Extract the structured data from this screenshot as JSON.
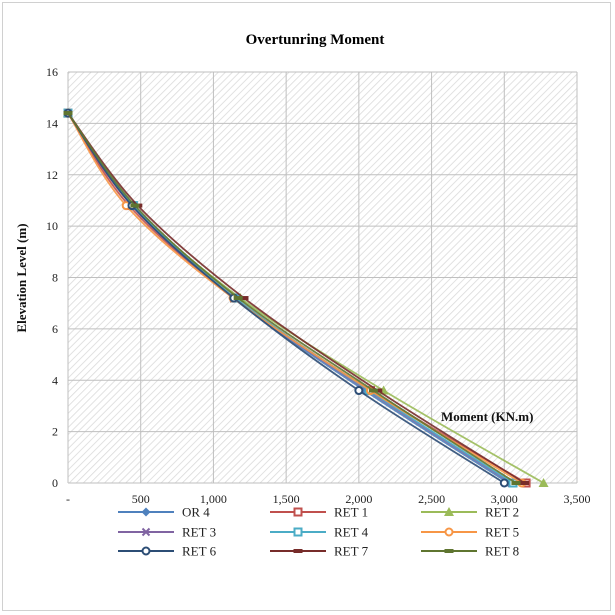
{
  "chart_data": {
    "type": "line",
    "title": "Overtunring Moment",
    "xlabel": "Moment (KN.m)",
    "ylabel": "Elevation Level (m)",
    "xlim": [
      0,
      3500
    ],
    "ylim": [
      0,
      16
    ],
    "x_ticks": [
      "-",
      "500",
      "1,000",
      "1,500",
      "2,000",
      "2,500",
      "3,000",
      "3,500"
    ],
    "y_ticks": [
      "0",
      "2",
      "4",
      "6",
      "8",
      "10",
      "12",
      "14",
      "16"
    ],
    "grid": true,
    "background": "hatched",
    "legend_position": "bottom",
    "y": [
      0,
      3.6,
      7.2,
      10.8,
      14.4
    ],
    "series": [
      {
        "name": "OR 4",
        "color": "#4F81BD",
        "marker": "diamond",
        "x": [
          3030,
          2040,
          1135,
          440,
          0
        ]
      },
      {
        "name": "RET 1",
        "color": "#C0504D",
        "marker": "square",
        "x": [
          3150,
          2080,
          1145,
          420,
          0
        ]
      },
      {
        "name": "RET 2",
        "color": "#9BBB59",
        "marker": "triangle",
        "x": [
          3270,
          2170,
          1185,
          450,
          0
        ]
      },
      {
        "name": "RET 3",
        "color": "#8064A2",
        "marker": "x",
        "x": [
          3050,
          2060,
          1140,
          440,
          0
        ]
      },
      {
        "name": "RET 4",
        "color": "#4BACC6",
        "marker": "square",
        "x": [
          3060,
          2070,
          1150,
          450,
          0
        ]
      },
      {
        "name": "RET 5",
        "color": "#F79646",
        "marker": "circle",
        "x": [
          3120,
          2080,
          1135,
          400,
          0
        ]
      },
      {
        "name": "RET 6",
        "color": "#2C4D75",
        "marker": "circle",
        "x": [
          3000,
          2000,
          1140,
          440,
          0
        ]
      },
      {
        "name": "RET 7",
        "color": "#772C2A",
        "marker": "dash",
        "x": [
          3140,
          2130,
          1210,
          480,
          0
        ]
      },
      {
        "name": "RET 8",
        "color": "#5F7530",
        "marker": "dash",
        "x": [
          3080,
          2100,
          1170,
          460,
          0
        ]
      }
    ]
  }
}
